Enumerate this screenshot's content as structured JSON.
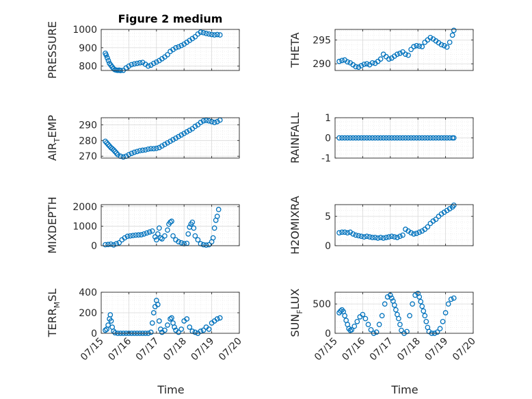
{
  "chart_data": [
    {
      "type": "scatter",
      "title": "Figure 2 medium",
      "ylabel": "PRESSURE",
      "ylabel_sub": "",
      "ylabel_parts": [
        "PRESSURE"
      ],
      "ylim": [
        776,
        1000
      ],
      "yticks": [
        800,
        900,
        1000
      ],
      "xlim": [
        0,
        5
      ],
      "grid": true,
      "x": [
        0.15,
        0.18,
        0.22,
        0.26,
        0.3,
        0.35,
        0.4,
        0.45,
        0.5,
        0.55,
        0.6,
        0.65,
        0.7,
        0.8,
        0.9,
        1.0,
        1.1,
        1.2,
        1.3,
        1.4,
        1.5,
        1.6,
        1.7,
        1.8,
        1.9,
        2.0,
        2.1,
        2.2,
        2.3,
        2.4,
        2.5,
        2.6,
        2.7,
        2.8,
        2.9,
        3.0,
        3.1,
        3.2,
        3.3,
        3.4,
        3.5,
        3.6,
        3.7,
        3.8,
        3.9,
        4.0,
        4.1,
        4.2,
        4.3
      ],
      "y": [
        870,
        860,
        845,
        830,
        815,
        805,
        795,
        785,
        780,
        778,
        777,
        778,
        776,
        777,
        790,
        800,
        808,
        812,
        815,
        818,
        820,
        810,
        800,
        805,
        815,
        822,
        830,
        840,
        850,
        862,
        880,
        890,
        900,
        905,
        912,
        920,
        930,
        940,
        950,
        960,
        975,
        985,
        982,
        978,
        975,
        972,
        970,
        972,
        970
      ]
    },
    {
      "type": "scatter",
      "title": "",
      "ylabel": "THETA",
      "ylabel_sub": "",
      "ylabel_parts": [
        "THETA"
      ],
      "ylim": [
        288.6,
        297.2
      ],
      "yticks": [
        290,
        295
      ],
      "xlim": [
        0,
        5
      ],
      "grid": true,
      "x": [
        0.15,
        0.25,
        0.35,
        0.45,
        0.55,
        0.65,
        0.75,
        0.85,
        0.95,
        1.05,
        1.15,
        1.25,
        1.35,
        1.45,
        1.55,
        1.65,
        1.75,
        1.85,
        1.95,
        2.05,
        2.15,
        2.25,
        2.35,
        2.45,
        2.55,
        2.65,
        2.75,
        2.85,
        2.95,
        3.05,
        3.15,
        3.25,
        3.35,
        3.45,
        3.55,
        3.65,
        3.75,
        3.85,
        3.95,
        4.05,
        4.15,
        4.25,
        4.3
      ],
      "y": [
        290.5,
        290.7,
        290.8,
        290.4,
        290.2,
        289.8,
        289.4,
        289.3,
        289.6,
        289.9,
        290.0,
        289.8,
        290.2,
        290.1,
        290.5,
        291.0,
        292.0,
        291.5,
        291.0,
        291.2,
        291.6,
        292.0,
        292.2,
        292.5,
        292.0,
        291.8,
        293.0,
        293.6,
        293.8,
        293.7,
        293.6,
        294.5,
        295.0,
        295.5,
        295.2,
        294.8,
        294.4,
        294.0,
        293.8,
        293.5,
        294.5,
        296.0,
        297.0
      ]
    },
    {
      "type": "scatter",
      "title": "",
      "ylabel": "AIR",
      "ylabel_sub": "T",
      "ylabel_tail": "EMP",
      "ylabel_parts": [
        "AIR",
        "T",
        "EMP"
      ],
      "ylim": [
        268.8,
        294.5
      ],
      "yticks": [
        270,
        280,
        290
      ],
      "xlim": [
        0,
        5
      ],
      "grid": true,
      "x": [
        0.15,
        0.2,
        0.25,
        0.3,
        0.35,
        0.4,
        0.45,
        0.5,
        0.55,
        0.6,
        0.7,
        0.8,
        0.9,
        1.0,
        1.1,
        1.2,
        1.3,
        1.4,
        1.5,
        1.6,
        1.7,
        1.8,
        1.9,
        2.0,
        2.1,
        2.2,
        2.3,
        2.4,
        2.5,
        2.6,
        2.7,
        2.8,
        2.9,
        3.0,
        3.1,
        3.2,
        3.3,
        3.4,
        3.5,
        3.6,
        3.7,
        3.8,
        3.9,
        4.0,
        4.1,
        4.2,
        4.3
      ],
      "y": [
        279.5,
        278.5,
        277.5,
        276.5,
        275.5,
        274.8,
        274.0,
        273.0,
        272.0,
        271.0,
        270.0,
        269.5,
        270.0,
        271.0,
        271.8,
        272.5,
        273.0,
        273.5,
        273.8,
        274.0,
        274.5,
        274.8,
        274.8,
        275.0,
        275.5,
        276.5,
        277.5,
        278.5,
        279.5,
        280.5,
        281.5,
        282.5,
        283.5,
        284.5,
        285.5,
        286.5,
        287.5,
        289.0,
        290.0,
        291.5,
        292.5,
        292.8,
        292.5,
        292.0,
        291.5,
        292.0,
        293.0
      ]
    },
    {
      "type": "scatter",
      "title": "",
      "ylabel": "RAINFALL",
      "ylabel_sub": "",
      "ylabel_parts": [
        "RAINFALL"
      ],
      "ylim": [
        -1,
        1
      ],
      "yticks": [
        -1,
        0,
        1
      ],
      "xlim": [
        0,
        5
      ],
      "grid": true,
      "x": [
        0.15,
        0.25,
        0.35,
        0.45,
        0.55,
        0.65,
        0.75,
        0.85,
        0.95,
        1.05,
        1.15,
        1.25,
        1.35,
        1.45,
        1.55,
        1.65,
        1.75,
        1.85,
        1.95,
        2.05,
        2.15,
        2.25,
        2.35,
        2.45,
        2.55,
        2.65,
        2.75,
        2.85,
        2.95,
        3.05,
        3.15,
        3.25,
        3.35,
        3.45,
        3.55,
        3.65,
        3.75,
        3.85,
        3.95,
        4.05,
        4.15,
        4.25,
        4.3
      ],
      "y": [
        0,
        0,
        0,
        0,
        0,
        0,
        0,
        0,
        0,
        0,
        0,
        0,
        0,
        0,
        0,
        0,
        0,
        0,
        0,
        0,
        0,
        0,
        0,
        0,
        0,
        0,
        0,
        0,
        0,
        0,
        0,
        0,
        0,
        0,
        0,
        0,
        0,
        0,
        0,
        0,
        0,
        0,
        0
      ]
    },
    {
      "type": "scatter",
      "title": "",
      "ylabel": "MIXDEPTH",
      "ylabel_sub": "",
      "ylabel_parts": [
        "MIXDEPTH"
      ],
      "ylim": [
        0,
        2100
      ],
      "yticks": [
        0,
        1000,
        2000
      ],
      "xlim": [
        0,
        5
      ],
      "grid": true,
      "x": [
        0.15,
        0.25,
        0.35,
        0.45,
        0.55,
        0.65,
        0.75,
        0.85,
        0.95,
        1.05,
        1.15,
        1.25,
        1.35,
        1.45,
        1.55,
        1.65,
        1.75,
        1.85,
        1.95,
        2.0,
        2.05,
        2.1,
        2.15,
        2.2,
        2.3,
        2.4,
        2.45,
        2.5,
        2.55,
        2.6,
        2.7,
        2.8,
        2.9,
        3.0,
        3.1,
        3.15,
        3.2,
        3.25,
        3.3,
        3.35,
        3.4,
        3.5,
        3.6,
        3.7,
        3.8,
        3.9,
        4.0,
        4.05,
        4.1,
        4.15,
        4.2,
        4.25
      ],
      "y": [
        50,
        60,
        80,
        40,
        100,
        150,
        300,
        400,
        480,
        500,
        520,
        540,
        550,
        560,
        600,
        650,
        700,
        750,
        450,
        300,
        600,
        900,
        400,
        350,
        500,
        800,
        1100,
        1200,
        1250,
        500,
        300,
        200,
        150,
        100,
        120,
        600,
        950,
        1100,
        1200,
        900,
        500,
        300,
        100,
        50,
        30,
        50,
        200,
        400,
        900,
        1300,
        1500,
        1850
      ]
    },
    {
      "type": "scatter",
      "title": "",
      "ylabel": "H2OMIXRA",
      "ylabel_sub": "",
      "ylabel_parts": [
        "H2OMIXRA"
      ],
      "ylim": [
        0,
        7
      ],
      "yticks": [
        0,
        5
      ],
      "xlim": [
        0,
        5
      ],
      "grid": true,
      "x": [
        0.15,
        0.25,
        0.35,
        0.45,
        0.55,
        0.65,
        0.75,
        0.85,
        0.95,
        1.05,
        1.15,
        1.25,
        1.35,
        1.45,
        1.55,
        1.65,
        1.75,
        1.85,
        1.95,
        2.05,
        2.15,
        2.25,
        2.35,
        2.45,
        2.55,
        2.65,
        2.75,
        2.85,
        2.95,
        3.05,
        3.15,
        3.25,
        3.35,
        3.45,
        3.55,
        3.65,
        3.75,
        3.85,
        3.95,
        4.05,
        4.15,
        4.25,
        4.3
      ],
      "y": [
        2.2,
        2.3,
        2.3,
        2.2,
        2.3,
        2.0,
        1.8,
        1.7,
        1.6,
        1.5,
        1.6,
        1.5,
        1.4,
        1.4,
        1.3,
        1.4,
        1.3,
        1.4,
        1.5,
        1.6,
        1.5,
        1.4,
        1.6,
        1.8,
        2.8,
        2.5,
        2.2,
        2.0,
        2.1,
        2.3,
        2.5,
        2.8,
        3.2,
        3.8,
        4.2,
        4.5,
        5.0,
        5.4,
        5.7,
        6.0,
        6.3,
        6.6,
        6.9
      ]
    },
    {
      "type": "scatter",
      "title": "",
      "ylabel": "TERR",
      "ylabel_sub": "M",
      "ylabel_tail": "SL",
      "ylabel_parts": [
        "TERR",
        "M",
        "SL"
      ],
      "ylim": [
        0,
        400
      ],
      "yticks": [
        0,
        200,
        400
      ],
      "xlim": [
        0,
        5
      ],
      "grid": true,
      "x": [
        0.15,
        0.2,
        0.25,
        0.3,
        0.33,
        0.36,
        0.4,
        0.45,
        0.5,
        0.6,
        0.7,
        0.8,
        0.9,
        1.0,
        1.1,
        1.2,
        1.3,
        1.4,
        1.5,
        1.6,
        1.7,
        1.8,
        1.85,
        1.9,
        1.95,
        2.0,
        2.05,
        2.1,
        2.15,
        2.2,
        2.3,
        2.4,
        2.5,
        2.55,
        2.6,
        2.65,
        2.7,
        2.8,
        2.9,
        3.0,
        3.1,
        3.2,
        3.3,
        3.4,
        3.5,
        3.6,
        3.7,
        3.8,
        3.9,
        4.0,
        4.1,
        4.2,
        4.3
      ],
      "y": [
        30,
        40,
        80,
        140,
        180,
        120,
        60,
        20,
        5,
        0,
        0,
        0,
        0,
        0,
        0,
        0,
        0,
        0,
        0,
        0,
        0,
        10,
        100,
        200,
        260,
        320,
        280,
        120,
        40,
        10,
        30,
        80,
        140,
        150,
        100,
        60,
        30,
        10,
        40,
        120,
        140,
        60,
        20,
        10,
        0,
        20,
        30,
        60,
        40,
        100,
        120,
        140,
        150
      ]
    },
    {
      "type": "scatter",
      "title": "",
      "ylabel": "SUN",
      "ylabel_sub": "F",
      "ylabel_tail": "LUX",
      "ylabel_parts": [
        "SUN",
        "F",
        "LUX"
      ],
      "ylim": [
        0,
        700
      ],
      "yticks": [
        0,
        500
      ],
      "xlim": [
        0,
        5
      ],
      "grid": true,
      "x": [
        0.15,
        0.2,
        0.25,
        0.3,
        0.35,
        0.4,
        0.45,
        0.5,
        0.55,
        0.6,
        0.7,
        0.8,
        0.9,
        1.0,
        1.1,
        1.2,
        1.3,
        1.4,
        1.5,
        1.6,
        1.7,
        1.8,
        1.9,
        2.0,
        2.05,
        2.1,
        2.15,
        2.2,
        2.25,
        2.3,
        2.35,
        2.4,
        2.5,
        2.6,
        2.7,
        2.8,
        2.9,
        3.0,
        3.05,
        3.1,
        3.15,
        3.2,
        3.25,
        3.3,
        3.35,
        3.4,
        3.5,
        3.6,
        3.7,
        3.8,
        3.9,
        4.0,
        4.1,
        4.2,
        4.3
      ],
      "y": [
        350,
        380,
        400,
        370,
        300,
        220,
        150,
        80,
        50,
        60,
        120,
        200,
        280,
        320,
        250,
        150,
        60,
        0,
        20,
        150,
        300,
        500,
        620,
        650,
        600,
        550,
        480,
        400,
        320,
        250,
        150,
        50,
        0,
        30,
        300,
        500,
        650,
        680,
        620,
        540,
        460,
        380,
        300,
        200,
        100,
        30,
        0,
        0,
        20,
        80,
        200,
        350,
        500,
        580,
        600
      ]
    }
  ],
  "x_tick_labels": [
    "07/15",
    "07/16",
    "07/17",
    "07/18",
    "07/19",
    "07/20"
  ],
  "x_axis_label": "Time",
  "marker_color": "#0072BD",
  "grid_color": "#d9d9d9"
}
